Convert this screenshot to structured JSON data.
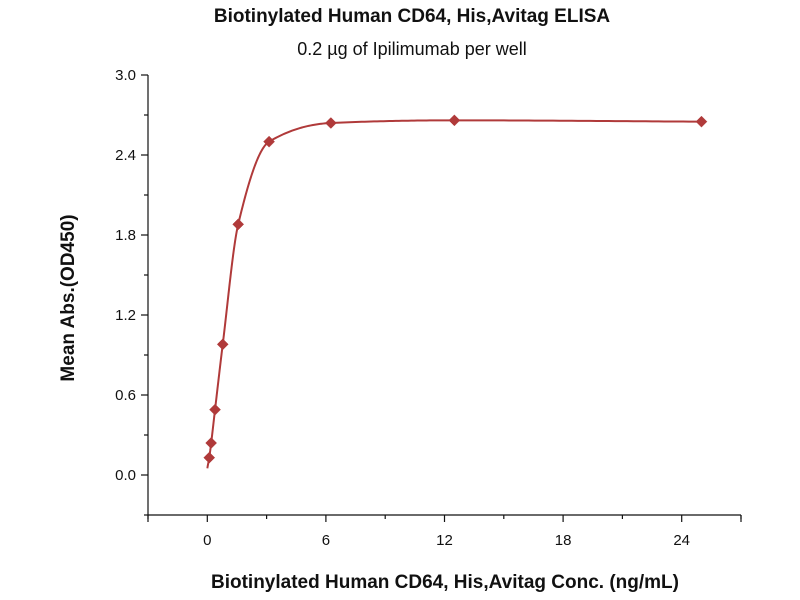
{
  "chart_data": {
    "type": "scatter",
    "title": "Biotinylated Human CD64, His,Avitag ELISA",
    "subtitle": "0.2 µg of Ipilimumab per well",
    "xlabel": "Biotinylated Human CD64, His,Avitag Conc. (ng/mL)",
    "ylabel": "Mean Abs.(OD450)",
    "xlim": [
      -3,
      27
    ],
    "ylim": [
      -0.3,
      3.0
    ],
    "xticks": [
      0,
      6,
      12,
      18,
      24
    ],
    "xtick_labels": [
      "0",
      "6",
      "12",
      "18",
      "24"
    ],
    "yticks": [
      0.0,
      0.6,
      1.2,
      1.8,
      2.4,
      3.0
    ],
    "ytick_labels": [
      "0.0",
      "0.6",
      "1.2",
      "1.8",
      "2.4",
      "3.0"
    ],
    "grid": false,
    "legend": "none",
    "series": [
      {
        "x": [
          0.098,
          0.195,
          0.391,
          0.781,
          1.563,
          3.125,
          6.25,
          12.5,
          25
        ],
        "y": [
          0.13,
          0.24,
          0.49,
          0.98,
          1.88,
          2.5,
          2.64,
          2.66,
          2.65
        ],
        "color": "#b03a3a",
        "marker": "diamond",
        "fit_line": true
      }
    ]
  }
}
